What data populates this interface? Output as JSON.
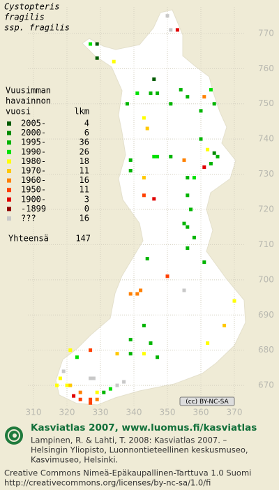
{
  "title": [
    "Cystopteris",
    "fragilis",
    "ssp. fragilis"
  ],
  "legend": {
    "header": [
      "Vuusimman",
      "havainnon",
      "vuosi"
    ],
    "count_header": "lkm",
    "items": [
      {
        "label": "2005-",
        "count": 4,
        "color": "#005a00"
      },
      {
        "label": "2000-",
        "count": 6,
        "color": "#008a00"
      },
      {
        "label": "1995-",
        "count": 36,
        "color": "#00b400"
      },
      {
        "label": "1990-",
        "count": 26,
        "color": "#00e000"
      },
      {
        "label": "1980-",
        "count": 18,
        "color": "#ffff00"
      },
      {
        "label": "1970-",
        "count": 11,
        "color": "#ffc800"
      },
      {
        "label": "1960-",
        "count": 16,
        "color": "#ff8000"
      },
      {
        "label": "1950-",
        "count": 11,
        "color": "#ff4000"
      },
      {
        "label": "1900-",
        "count": 3,
        "color": "#e00000"
      },
      {
        "label": "-1899",
        "count": 0,
        "color": "#900000"
      },
      {
        "label": "???",
        "count": 16,
        "color": "#c8c8c8"
      }
    ],
    "total_label": "Yhteensä",
    "total": 147
  },
  "map": {
    "xlim": [
      300,
      380
    ],
    "ylim": [
      660.5,
      779.5
    ],
    "xticks": [
      310,
      320,
      330,
      340,
      350,
      360,
      370
    ],
    "yticks": [
      670,
      680,
      690,
      700,
      710,
      720,
      730,
      740,
      750,
      760,
      770
    ],
    "points": [
      [
        350,
        775,
        10
      ],
      [
        351,
        771,
        10
      ],
      [
        353,
        771,
        8
      ],
      [
        327,
        767,
        3
      ],
      [
        329,
        767,
        0
      ],
      [
        329,
        763,
        0
      ],
      [
        334,
        762,
        4
      ],
      [
        346,
        757,
        0
      ],
      [
        345,
        753,
        2
      ],
      [
        347,
        753,
        2
      ],
      [
        341,
        753,
        3
      ],
      [
        338,
        750,
        2
      ],
      [
        343,
        746,
        4
      ],
      [
        344,
        743,
        5
      ],
      [
        354,
        754,
        2
      ],
      [
        351,
        750,
        2
      ],
      [
        356,
        752,
        2
      ],
      [
        361,
        752,
        6
      ],
      [
        363,
        754,
        3
      ],
      [
        364,
        750,
        2
      ],
      [
        360,
        748,
        2
      ],
      [
        360,
        740,
        2
      ],
      [
        362,
        737,
        4
      ],
      [
        364,
        736,
        1
      ],
      [
        365,
        735,
        2
      ],
      [
        363,
        733,
        2
      ],
      [
        361,
        732,
        8
      ],
      [
        355,
        734,
        6
      ],
      [
        346,
        735,
        3
      ],
      [
        347,
        735,
        3
      ],
      [
        351,
        735,
        2
      ],
      [
        339,
        734,
        2
      ],
      [
        339,
        731,
        2
      ],
      [
        343,
        729,
        5
      ],
      [
        356,
        729,
        2
      ],
      [
        358,
        729,
        3
      ],
      [
        343,
        724,
        7
      ],
      [
        346,
        723,
        8
      ],
      [
        356,
        724,
        2
      ],
      [
        357,
        720,
        2
      ],
      [
        355,
        716,
        2
      ],
      [
        356,
        715,
        2
      ],
      [
        358,
        712,
        2
      ],
      [
        356,
        709,
        2
      ],
      [
        361,
        705,
        2
      ],
      [
        350,
        701,
        7
      ],
      [
        344,
        706,
        2
      ],
      [
        355,
        697,
        10
      ],
      [
        342,
        697,
        6
      ],
      [
        339,
        696,
        6
      ],
      [
        341,
        696,
        6
      ],
      [
        370,
        694,
        4
      ],
      [
        367,
        687,
        5
      ],
      [
        362,
        682,
        4
      ],
      [
        343,
        687,
        2
      ],
      [
        345,
        682,
        2
      ],
      [
        339,
        683,
        2
      ],
      [
        339,
        679,
        2
      ],
      [
        343,
        679,
        4
      ],
      [
        347,
        678,
        2
      ],
      [
        321,
        680,
        4
      ],
      [
        327,
        680,
        7
      ],
      [
        323,
        678,
        3
      ],
      [
        320,
        670,
        4
      ],
      [
        321,
        670,
        5
      ],
      [
        324,
        668,
        6
      ],
      [
        327,
        672,
        10
      ],
      [
        328,
        672,
        10
      ],
      [
        329,
        668,
        4
      ],
      [
        331,
        668,
        2
      ],
      [
        335,
        670,
        10
      ],
      [
        337,
        671,
        10
      ],
      [
        322,
        667,
        8
      ],
      [
        324,
        666,
        7
      ],
      [
        327,
        666,
        7
      ],
      [
        329,
        666,
        6
      ],
      [
        327,
        665,
        7
      ],
      [
        317,
        670,
        4
      ],
      [
        318,
        672,
        4
      ],
      [
        319,
        674,
        10
      ],
      [
        335,
        679,
        5
      ],
      [
        333,
        669,
        3
      ]
    ]
  },
  "badge": "(cc) BY-NC-SA",
  "footer": {
    "site": "Kasviatlas 2007, www.luomus.fi/kasviatlas",
    "citation": [
      "Lampinen, R. & Lahti, T. 2008: Kasviatlas 2007. –",
      "Helsingin Yliopisto, Luonnontieteellinen keskusmuseo,",
      "Kasvimuseo, Helsinki."
    ],
    "license": [
      "Creative Commons Nimeä-Epäkaupallinen-Tarttuva 1.0 Suomi",
      "http://creativecommons.org/licenses/by-nc-sa/1.0/fi"
    ]
  }
}
